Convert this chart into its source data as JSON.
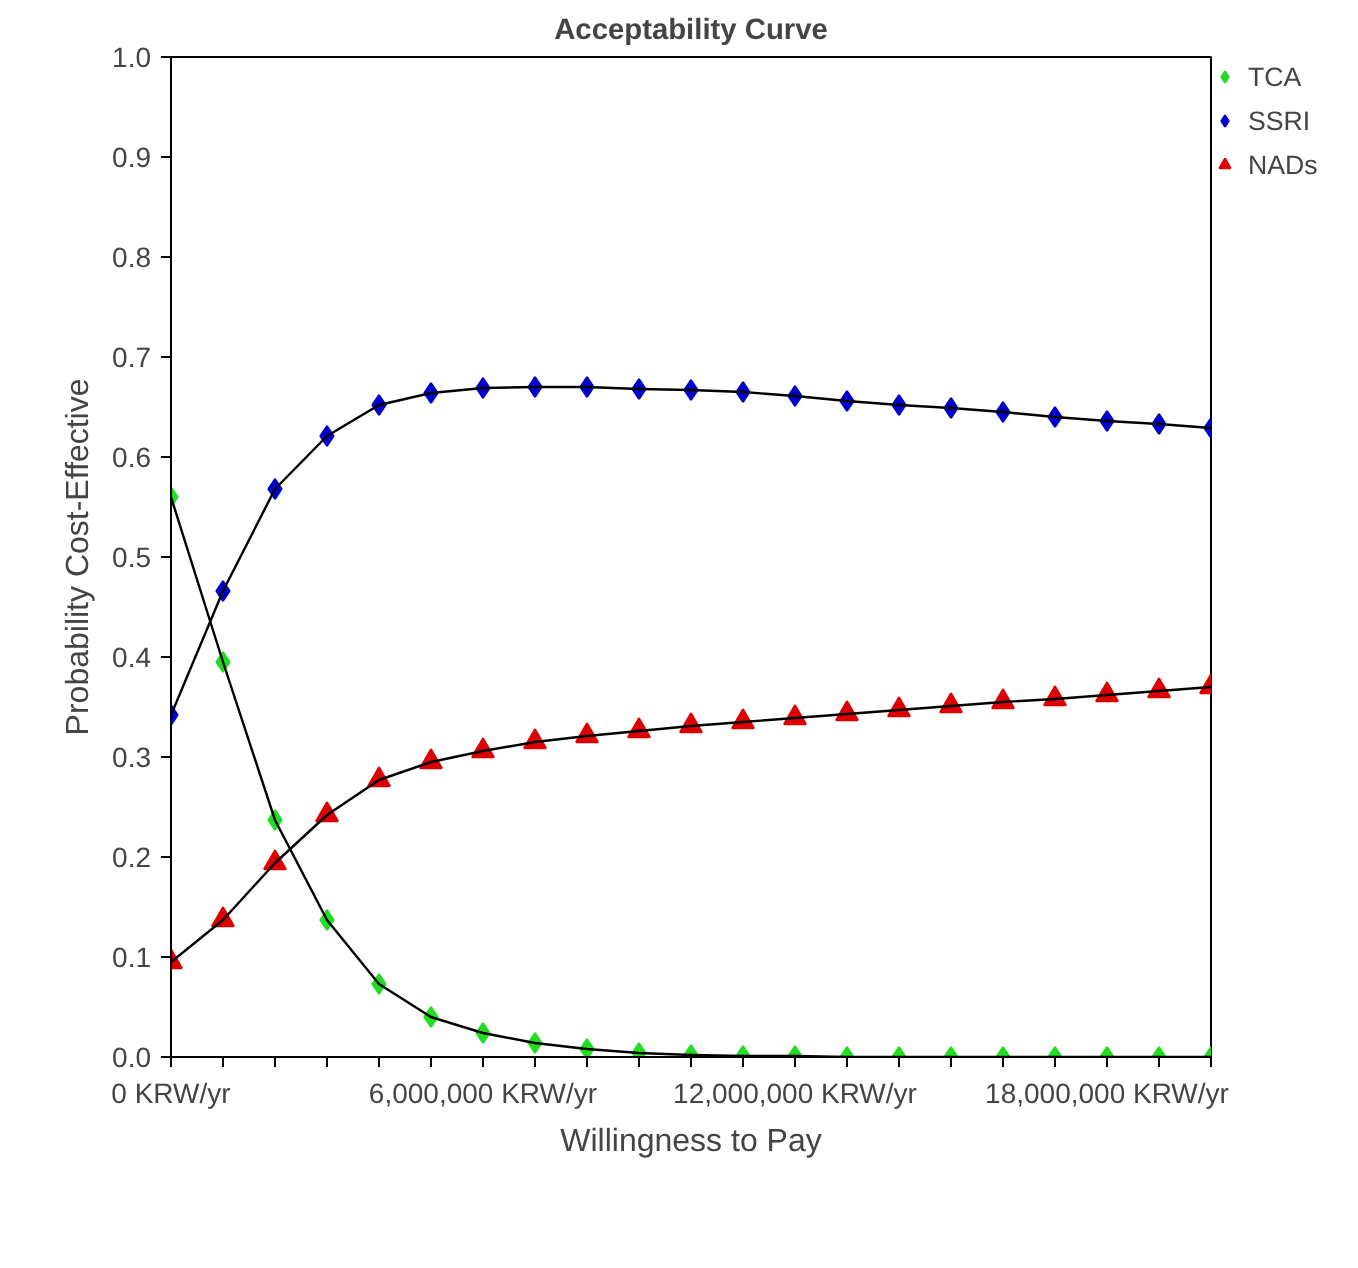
{
  "chart_data": {
    "type": "line",
    "title": "Acceptability Curve",
    "xlabel": "Willingness to Pay",
    "ylabel": "Probability Cost-Effective",
    "x": [
      0,
      1000000,
      2000000,
      3000000,
      4000000,
      5000000,
      6000000,
      7000000,
      8000000,
      9000000,
      10000000,
      11000000,
      12000000,
      13000000,
      14000000,
      15000000,
      16000000,
      17000000,
      18000000,
      19000000,
      20000000
    ],
    "series": [
      {
        "name": "TCA",
        "color": "#22dd22",
        "marker": "diamond",
        "values": [
          0.56,
          0.395,
          0.237,
          0.137,
          0.073,
          0.04,
          0.024,
          0.014,
          0.008,
          0.004,
          0.002,
          0.001,
          0.001,
          0,
          0,
          0,
          0,
          0,
          0,
          0,
          0
        ]
      },
      {
        "name": "SSRI",
        "color": "#0000cc",
        "marker": "diamond",
        "values": [
          0.342,
          0.466,
          0.568,
          0.621,
          0.652,
          0.664,
          0.669,
          0.67,
          0.67,
          0.668,
          0.667,
          0.665,
          0.661,
          0.656,
          0.652,
          0.649,
          0.645,
          0.64,
          0.636,
          0.633,
          0.629
        ]
      },
      {
        "name": "NADs",
        "color": "#dd0000",
        "marker": "triangle",
        "values": [
          0.095,
          0.137,
          0.194,
          0.242,
          0.277,
          0.295,
          0.306,
          0.315,
          0.321,
          0.326,
          0.331,
          0.335,
          0.339,
          0.343,
          0.347,
          0.351,
          0.355,
          0.358,
          0.362,
          0.366,
          0.37
        ]
      }
    ],
    "xlim": [
      0,
      20000000
    ],
    "xticks": [
      {
        "value": 0,
        "label": "0 KRW/yr"
      },
      {
        "value": 1000000,
        "label": null
      },
      {
        "value": 2000000,
        "label": null
      },
      {
        "value": 3000000,
        "label": null
      },
      {
        "value": 4000000,
        "label": null
      },
      {
        "value": 5000000,
        "label": null
      },
      {
        "value": 6000000,
        "label": "6,000,000 KRW/yr"
      },
      {
        "value": 7000000,
        "label": null
      },
      {
        "value": 8000000,
        "label": null
      },
      {
        "value": 9000000,
        "label": null
      },
      {
        "value": 10000000,
        "label": null
      },
      {
        "value": 11000000,
        "label": null
      },
      {
        "value": 12000000,
        "label": "12,000,000 KRW/yr"
      },
      {
        "value": 13000000,
        "label": null
      },
      {
        "value": 14000000,
        "label": null
      },
      {
        "value": 15000000,
        "label": null
      },
      {
        "value": 16000000,
        "label": null
      },
      {
        "value": 17000000,
        "label": null
      },
      {
        "value": 18000000,
        "label": "18,000,000 KRW/yr"
      },
      {
        "value": 19000000,
        "label": null
      },
      {
        "value": 20000000,
        "label": null
      }
    ],
    "ylim": [
      0,
      1
    ],
    "yticks": [
      {
        "value": 0,
        "label": "0.0"
      },
      {
        "value": 0.1,
        "label": "0.1"
      },
      {
        "value": 0.2,
        "label": "0.2"
      },
      {
        "value": 0.3,
        "label": "0.3"
      },
      {
        "value": 0.4,
        "label": "0.4"
      },
      {
        "value": 0.5,
        "label": "0.5"
      },
      {
        "value": 0.6,
        "label": "0.6"
      },
      {
        "value": 0.7,
        "label": "0.7"
      },
      {
        "value": 0.8,
        "label": "0.8"
      },
      {
        "value": 0.9,
        "label": "0.9"
      },
      {
        "value": 1,
        "label": "1.0"
      }
    ],
    "grid": false,
    "legend": "top right"
  }
}
